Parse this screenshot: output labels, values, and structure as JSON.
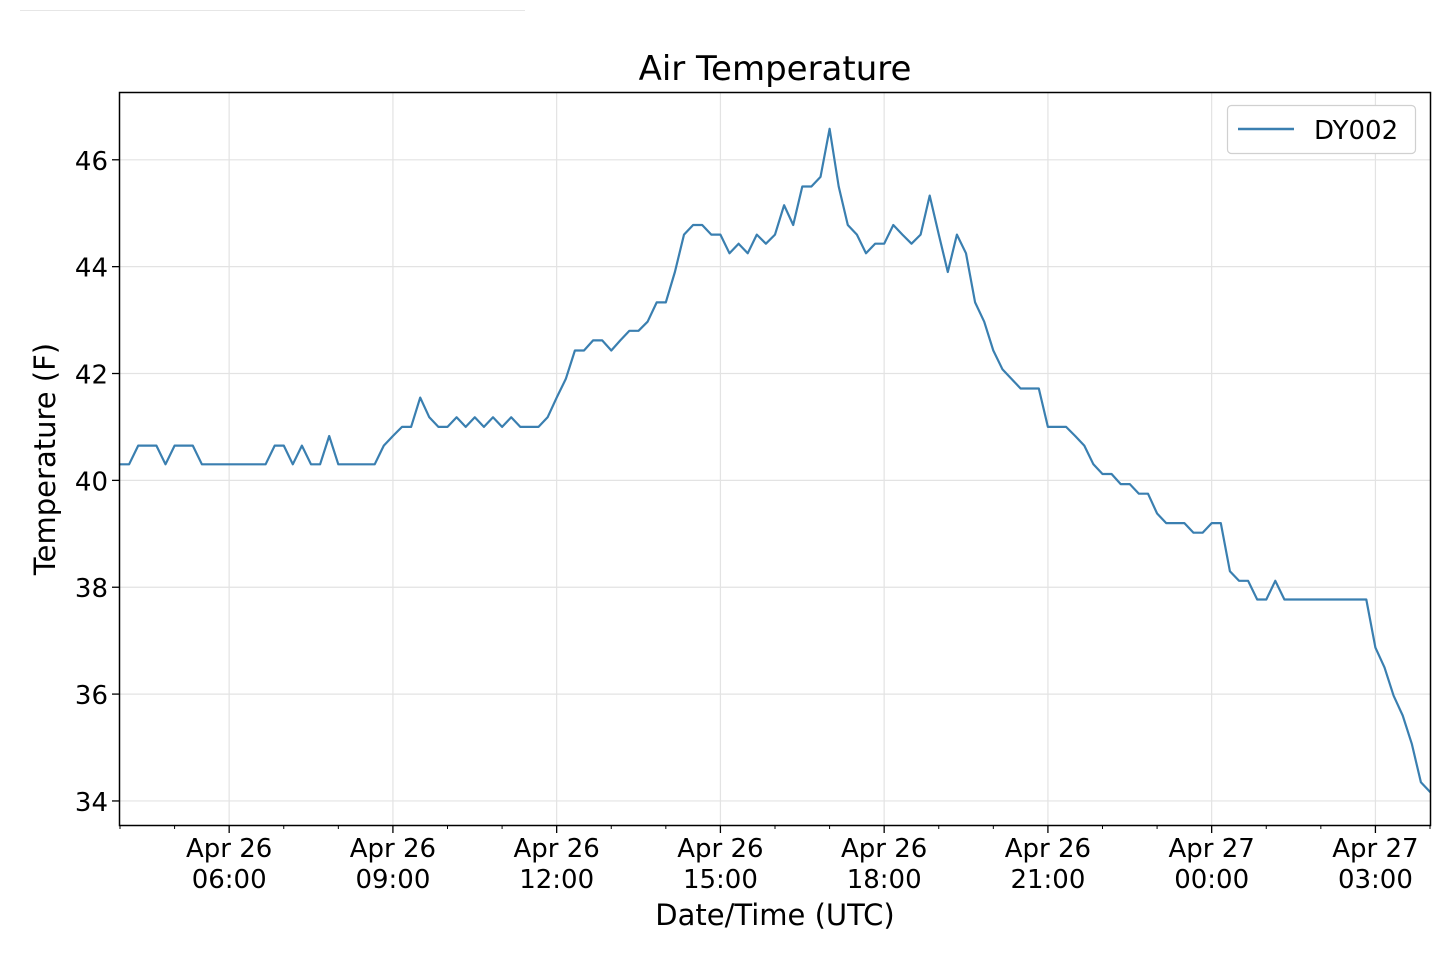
{
  "chart_data": {
    "type": "line",
    "title": "Air Temperature",
    "xlabel": "Date/Time (UTC)",
    "ylabel": "Temperature (F)",
    "ylim": [
      33.55,
      47.25
    ],
    "xlim": [
      "Apr 26 04:00",
      "Apr 27 04:00"
    ],
    "grid": true,
    "legend_position": "top-right",
    "y_ticks": [
      {
        "value": 34,
        "label": "34"
      },
      {
        "value": 36,
        "label": "36"
      },
      {
        "value": 38,
        "label": "38"
      },
      {
        "value": 40,
        "label": "40"
      },
      {
        "value": 42,
        "label": "42"
      },
      {
        "value": 44,
        "label": "44"
      },
      {
        "value": 46,
        "label": "46"
      }
    ],
    "x_ticks": [
      {
        "time": "Apr 26 06:00",
        "line1": "Apr 26",
        "line2": "06:00"
      },
      {
        "time": "Apr 26 09:00",
        "line1": "Apr 26",
        "line2": "09:00"
      },
      {
        "time": "Apr 26 12:00",
        "line1": "Apr 26",
        "line2": "12:00"
      },
      {
        "time": "Apr 26 15:00",
        "line1": "Apr 26",
        "line2": "15:00"
      },
      {
        "time": "Apr 26 18:00",
        "line1": "Apr 26",
        "line2": "18:00"
      },
      {
        "time": "Apr 26 21:00",
        "line1": "Apr 26",
        "line2": "21:00"
      },
      {
        "time": "Apr 27 00:00",
        "line1": "Apr 27",
        "line2": "00:00"
      },
      {
        "time": "Apr 27 03:00",
        "line1": "Apr 27",
        "line2": "03:00"
      }
    ],
    "series": [
      {
        "name": "DY002",
        "color": "#3a7fb0",
        "points": [
          [
            "Apr 26 04:00",
            40.3
          ],
          [
            "Apr 26 04:10",
            40.3
          ],
          [
            "Apr 26 04:20",
            40.65
          ],
          [
            "Apr 26 04:30",
            40.65
          ],
          [
            "Apr 26 04:40",
            40.65
          ],
          [
            "Apr 26 04:50",
            40.3
          ],
          [
            "Apr 26 05:00",
            40.65
          ],
          [
            "Apr 26 05:10",
            40.65
          ],
          [
            "Apr 26 05:20",
            40.65
          ],
          [
            "Apr 26 05:30",
            40.3
          ],
          [
            "Apr 26 05:40",
            40.3
          ],
          [
            "Apr 26 05:50",
            40.3
          ],
          [
            "Apr 26 06:00",
            40.3
          ],
          [
            "Apr 26 06:10",
            40.3
          ],
          [
            "Apr 26 06:20",
            40.3
          ],
          [
            "Apr 26 06:30",
            40.3
          ],
          [
            "Apr 26 06:40",
            40.3
          ],
          [
            "Apr 26 06:50",
            40.65
          ],
          [
            "Apr 26 07:00",
            40.65
          ],
          [
            "Apr 26 07:10",
            40.3
          ],
          [
            "Apr 26 07:20",
            40.65
          ],
          [
            "Apr 26 07:30",
            40.3
          ],
          [
            "Apr 26 07:40",
            40.3
          ],
          [
            "Apr 26 07:50",
            40.83
          ],
          [
            "Apr 26 08:00",
            40.3
          ],
          [
            "Apr 26 08:10",
            40.3
          ],
          [
            "Apr 26 08:20",
            40.3
          ],
          [
            "Apr 26 08:30",
            40.3
          ],
          [
            "Apr 26 08:40",
            40.3
          ],
          [
            "Apr 26 08:50",
            40.65
          ],
          [
            "Apr 26 09:00",
            40.83
          ],
          [
            "Apr 26 09:10",
            41.0
          ],
          [
            "Apr 26 09:20",
            41.0
          ],
          [
            "Apr 26 09:30",
            41.55
          ],
          [
            "Apr 26 09:40",
            41.18
          ],
          [
            "Apr 26 09:50",
            41.0
          ],
          [
            "Apr 26 10:00",
            41.0
          ],
          [
            "Apr 26 10:10",
            41.18
          ],
          [
            "Apr 26 10:20",
            41.0
          ],
          [
            "Apr 26 10:30",
            41.18
          ],
          [
            "Apr 26 10:40",
            41.0
          ],
          [
            "Apr 26 10:50",
            41.18
          ],
          [
            "Apr 26 11:00",
            41.0
          ],
          [
            "Apr 26 11:10",
            41.18
          ],
          [
            "Apr 26 11:20",
            41.0
          ],
          [
            "Apr 26 11:30",
            41.0
          ],
          [
            "Apr 26 11:40",
            41.0
          ],
          [
            "Apr 26 11:50",
            41.18
          ],
          [
            "Apr 26 12:00",
            41.55
          ],
          [
            "Apr 26 12:10",
            41.9
          ],
          [
            "Apr 26 12:20",
            42.43
          ],
          [
            "Apr 26 12:30",
            42.43
          ],
          [
            "Apr 26 12:40",
            42.62
          ],
          [
            "Apr 26 12:50",
            42.62
          ],
          [
            "Apr 26 13:00",
            42.43
          ],
          [
            "Apr 26 13:10",
            42.62
          ],
          [
            "Apr 26 13:20",
            42.8
          ],
          [
            "Apr 26 13:30",
            42.8
          ],
          [
            "Apr 26 13:40",
            42.97
          ],
          [
            "Apr 26 13:50",
            43.33
          ],
          [
            "Apr 26 14:00",
            43.33
          ],
          [
            "Apr 26 14:10",
            43.9
          ],
          [
            "Apr 26 14:20",
            44.6
          ],
          [
            "Apr 26 14:30",
            44.78
          ],
          [
            "Apr 26 14:40",
            44.78
          ],
          [
            "Apr 26 14:50",
            44.6
          ],
          [
            "Apr 26 15:00",
            44.6
          ],
          [
            "Apr 26 15:10",
            44.25
          ],
          [
            "Apr 26 15:20",
            44.43
          ],
          [
            "Apr 26 15:30",
            44.25
          ],
          [
            "Apr 26 15:40",
            44.6
          ],
          [
            "Apr 26 15:50",
            44.43
          ],
          [
            "Apr 26 16:00",
            44.6
          ],
          [
            "Apr 26 16:10",
            45.15
          ],
          [
            "Apr 26 16:20",
            44.78
          ],
          [
            "Apr 26 16:30",
            45.5
          ],
          [
            "Apr 26 16:40",
            45.5
          ],
          [
            "Apr 26 16:50",
            45.68
          ],
          [
            "Apr 26 17:00",
            46.58
          ],
          [
            "Apr 26 17:10",
            45.5
          ],
          [
            "Apr 26 17:20",
            44.78
          ],
          [
            "Apr 26 17:30",
            44.6
          ],
          [
            "Apr 26 17:40",
            44.25
          ],
          [
            "Apr 26 17:50",
            44.43
          ],
          [
            "Apr 26 18:00",
            44.43
          ],
          [
            "Apr 26 18:10",
            44.78
          ],
          [
            "Apr 26 18:20",
            44.6
          ],
          [
            "Apr 26 18:30",
            44.43
          ],
          [
            "Apr 26 18:40",
            44.6
          ],
          [
            "Apr 26 18:50",
            45.33
          ],
          [
            "Apr 26 19:00",
            44.6
          ],
          [
            "Apr 26 19:10",
            43.9
          ],
          [
            "Apr 26 19:20",
            44.6
          ],
          [
            "Apr 26 19:30",
            44.25
          ],
          [
            "Apr 26 19:40",
            43.33
          ],
          [
            "Apr 26 19:50",
            42.97
          ],
          [
            "Apr 26 20:00",
            42.43
          ],
          [
            "Apr 26 20:10",
            42.08
          ],
          [
            "Apr 26 20:20",
            41.9
          ],
          [
            "Apr 26 20:30",
            41.72
          ],
          [
            "Apr 26 20:40",
            41.72
          ],
          [
            "Apr 26 20:50",
            41.72
          ],
          [
            "Apr 26 21:00",
            41.0
          ],
          [
            "Apr 26 21:10",
            41.0
          ],
          [
            "Apr 26 21:20",
            41.0
          ],
          [
            "Apr 26 21:30",
            40.83
          ],
          [
            "Apr 26 21:40",
            40.65
          ],
          [
            "Apr 26 21:50",
            40.3
          ],
          [
            "Apr 26 22:00",
            40.12
          ],
          [
            "Apr 26 22:10",
            40.12
          ],
          [
            "Apr 26 22:20",
            39.93
          ],
          [
            "Apr 26 22:30",
            39.93
          ],
          [
            "Apr 26 22:40",
            39.75
          ],
          [
            "Apr 26 22:50",
            39.75
          ],
          [
            "Apr 26 23:00",
            39.38
          ],
          [
            "Apr 26 23:10",
            39.2
          ],
          [
            "Apr 26 23:20",
            39.2
          ],
          [
            "Apr 26 23:30",
            39.2
          ],
          [
            "Apr 26 23:40",
            39.02
          ],
          [
            "Apr 26 23:50",
            39.02
          ],
          [
            "Apr 27 00:00",
            39.2
          ],
          [
            "Apr 27 00:10",
            39.2
          ],
          [
            "Apr 27 00:20",
            38.3
          ],
          [
            "Apr 27 00:30",
            38.12
          ],
          [
            "Apr 27 00:40",
            38.12
          ],
          [
            "Apr 27 00:50",
            37.77
          ],
          [
            "Apr 27 01:00",
            37.77
          ],
          [
            "Apr 27 01:10",
            38.12
          ],
          [
            "Apr 27 01:20",
            37.77
          ],
          [
            "Apr 27 01:30",
            37.77
          ],
          [
            "Apr 27 01:40",
            37.77
          ],
          [
            "Apr 27 01:50",
            37.77
          ],
          [
            "Apr 27 02:00",
            37.77
          ],
          [
            "Apr 27 02:10",
            37.77
          ],
          [
            "Apr 27 02:20",
            37.77
          ],
          [
            "Apr 27 02:30",
            37.77
          ],
          [
            "Apr 27 02:40",
            37.77
          ],
          [
            "Apr 27 02:50",
            37.77
          ],
          [
            "Apr 27 03:00",
            36.87
          ],
          [
            "Apr 27 03:10",
            36.5
          ],
          [
            "Apr 27 03:20",
            35.97
          ],
          [
            "Apr 27 03:30",
            35.6
          ],
          [
            "Apr 27 03:40",
            35.07
          ],
          [
            "Apr 27 03:50",
            34.35
          ],
          [
            "Apr 27 04:00",
            34.17
          ]
        ]
      }
    ]
  }
}
